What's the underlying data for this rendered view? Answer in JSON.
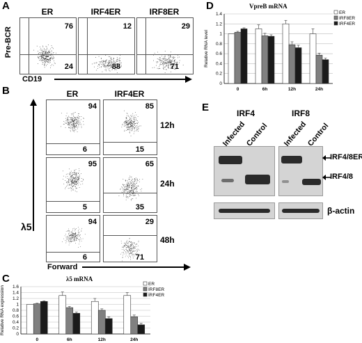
{
  "panelA": {
    "label": "A",
    "yaxis": "Pre-BCR",
    "xaxis": "CD19",
    "plots": [
      {
        "title": "ER",
        "upper": "76",
        "lower": "24"
      },
      {
        "title": "IRF4ER",
        "upper": "12",
        "lower": "88"
      },
      {
        "title": "IRF8ER",
        "upper": "29",
        "lower": "71"
      }
    ]
  },
  "panelB": {
    "label": "B",
    "yaxis": "λ5",
    "xaxis": "Forward",
    "columns": [
      "ER",
      "IRF4ER"
    ],
    "rows": [
      {
        "time": "12h",
        "er_upper": "94",
        "er_lower": "6",
        "irf4_upper": "85",
        "irf4_lower": "15"
      },
      {
        "time": "24h",
        "er_upper": "95",
        "er_lower": "5",
        "irf4_upper": "65",
        "irf4_lower": "35"
      },
      {
        "time": "48h",
        "er_upper": "94",
        "er_lower": "6",
        "irf4_upper": "29",
        "irf4_lower": "71"
      }
    ]
  },
  "panelE": {
    "label": "E",
    "groups": [
      "IRF4",
      "IRF8"
    ],
    "lanes": [
      "Infected",
      "Control"
    ],
    "arrow1": "IRF4/8ER",
    "arrow2": "IRF4/8",
    "loading": "β-actin"
  },
  "chart_data": [
    {
      "panel": "C",
      "type": "bar",
      "title": "λ5 mRNA",
      "xlabel": "",
      "ylabel": "Relative RNA expression",
      "categories": [
        "0",
        "6h",
        "12h",
        "24h"
      ],
      "ylim": [
        0,
        1.6
      ],
      "yticks": [
        "0",
        "0.2",
        "0.4",
        "0.6",
        "0.8",
        "1",
        "1.2",
        "1.4",
        "1.6"
      ],
      "legend_position": "top-right",
      "series": [
        {
          "name": "ER",
          "color": "#ffffff",
          "values": [
            1.0,
            1.3,
            1.1,
            1.3
          ],
          "errors": [
            0.0,
            0.12,
            0.1,
            0.1
          ]
        },
        {
          "name": "IRF8ER",
          "color": "#808080",
          "values": [
            1.02,
            0.89,
            0.8,
            0.58
          ],
          "errors": [
            0.02,
            0.04,
            0.05,
            0.06
          ]
        },
        {
          "name": "IRF4ER",
          "color": "#1a1a1a",
          "values": [
            1.1,
            0.7,
            0.52,
            0.31
          ],
          "errors": [
            0.02,
            0.04,
            0.06,
            0.05
          ]
        }
      ]
    },
    {
      "panel": "D",
      "type": "bar",
      "title": "VpreB mRNA",
      "xlabel": "",
      "ylabel": "Relative RNA level",
      "categories": [
        "0",
        "6h",
        "12h",
        "24h"
      ],
      "ylim": [
        0,
        1.4
      ],
      "yticks": [
        "0",
        "0.2",
        "0.4",
        "0.6",
        "0.8",
        "1",
        "1.2",
        "1.4"
      ],
      "legend_position": "top-right",
      "series": [
        {
          "name": "ER",
          "color": "#ffffff",
          "values": [
            1.0,
            1.1,
            1.2,
            1.0
          ],
          "errors": [
            0.0,
            0.08,
            0.07,
            0.1
          ]
        },
        {
          "name": "IRF8ER",
          "color": "#808080",
          "values": [
            1.03,
            0.96,
            0.78,
            0.57
          ],
          "errors": [
            0.02,
            0.05,
            0.06,
            0.04
          ]
        },
        {
          "name": "IRF4ER",
          "color": "#1a1a1a",
          "values": [
            1.1,
            0.95,
            0.72,
            0.48
          ],
          "errors": [
            0.02,
            0.03,
            0.05,
            0.03
          ]
        }
      ]
    }
  ]
}
